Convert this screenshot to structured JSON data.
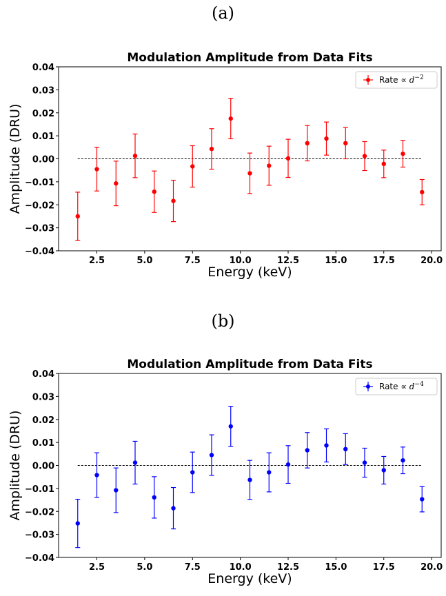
{
  "panels": [
    {
      "label": "(a)",
      "legend_main": "Rate ∝ ",
      "legend_var": "d",
      "legend_exp": "−2"
    },
    {
      "label": "(b)",
      "legend_main": "Rate ∝ ",
      "legend_var": "d",
      "legend_exp": "−4"
    }
  ],
  "chart_data": [
    {
      "type": "scatter",
      "title": "Modulation Amplitude from Data Fits",
      "xlabel": "Energy (keV)",
      "ylabel": "Amplitude (DRU)",
      "xlim": [
        0.5,
        20.5
      ],
      "ylim": [
        -0.04,
        0.04
      ],
      "xticks": [
        2.5,
        5.0,
        7.5,
        10.0,
        12.5,
        15.0,
        17.5,
        20.0
      ],
      "xtick_labels": [
        "2.5",
        "5.0",
        "7.5",
        "10.0",
        "12.5",
        "15.0",
        "17.5",
        "20.0"
      ],
      "yticks": [
        -0.04,
        -0.03,
        -0.02,
        -0.01,
        0.0,
        0.01,
        0.02,
        0.03,
        0.04
      ],
      "ytick_labels": [
        "−0.04",
        "−0.03",
        "−0.02",
        "−0.01",
        "0.00",
        "0.01",
        "0.02",
        "0.03",
        "0.04"
      ],
      "reference_line_y": 0.0,
      "legend_position": "top-right",
      "color": "#ff0000",
      "series": [
        {
          "name": "Rate ∝ d^−2",
          "x": [
            1.5,
            2.5,
            3.5,
            4.5,
            5.5,
            6.5,
            7.5,
            8.5,
            9.5,
            10.5,
            11.5,
            12.5,
            13.5,
            14.5,
            15.5,
            16.5,
            17.5,
            18.5,
            19.5
          ],
          "y": [
            -0.025,
            -0.0045,
            -0.0107,
            0.0013,
            -0.0143,
            -0.0183,
            -0.0033,
            0.0043,
            0.0175,
            -0.0063,
            -0.003,
            0.0002,
            0.0068,
            0.0088,
            0.0068,
            0.0012,
            -0.0022,
            0.0022,
            -0.0145
          ],
          "err": [
            0.0105,
            0.0095,
            0.0097,
            0.0095,
            0.009,
            0.009,
            0.009,
            0.0088,
            0.0088,
            0.0088,
            0.0085,
            0.0083,
            0.0077,
            0.0072,
            0.0068,
            0.0063,
            0.006,
            0.0058,
            0.0055
          ]
        }
      ]
    },
    {
      "type": "scatter",
      "title": "Modulation Amplitude from Data Fits",
      "xlabel": "Energy (keV)",
      "ylabel": "Amplitude (DRU)",
      "xlim": [
        0.5,
        20.5
      ],
      "ylim": [
        -0.04,
        0.04
      ],
      "xticks": [
        2.5,
        5.0,
        7.5,
        10.0,
        12.5,
        15.0,
        17.5,
        20.0
      ],
      "xtick_labels": [
        "2.5",
        "5.0",
        "7.5",
        "10.0",
        "12.5",
        "15.0",
        "17.5",
        "20.0"
      ],
      "yticks": [
        -0.04,
        -0.03,
        -0.02,
        -0.01,
        0.0,
        0.01,
        0.02,
        0.03,
        0.04
      ],
      "ytick_labels": [
        "−0.04",
        "−0.03",
        "−0.02",
        "−0.01",
        "0.00",
        "0.01",
        "0.02",
        "0.03",
        "0.04"
      ],
      "reference_line_y": 0.0,
      "legend_position": "top-right",
      "color": "#0000ff",
      "series": [
        {
          "name": "Rate ∝ d^−4",
          "x": [
            1.5,
            2.5,
            3.5,
            4.5,
            5.5,
            6.5,
            7.5,
            8.5,
            9.5,
            10.5,
            11.5,
            12.5,
            13.5,
            14.5,
            15.5,
            16.5,
            17.5,
            18.5,
            19.5
          ],
          "y": [
            -0.0252,
            -0.0042,
            -0.0108,
            0.0012,
            -0.0139,
            -0.0186,
            -0.003,
            0.0045,
            0.017,
            -0.0063,
            -0.003,
            0.0004,
            0.0066,
            0.0087,
            0.0071,
            0.0012,
            -0.0021,
            0.0022,
            -0.0147
          ],
          "err": [
            0.0105,
            0.0097,
            0.0097,
            0.0093,
            0.009,
            0.009,
            0.0088,
            0.0088,
            0.0087,
            0.0085,
            0.0085,
            0.0082,
            0.0077,
            0.0072,
            0.0067,
            0.0063,
            0.006,
            0.0058,
            0.0055
          ]
        }
      ]
    }
  ]
}
